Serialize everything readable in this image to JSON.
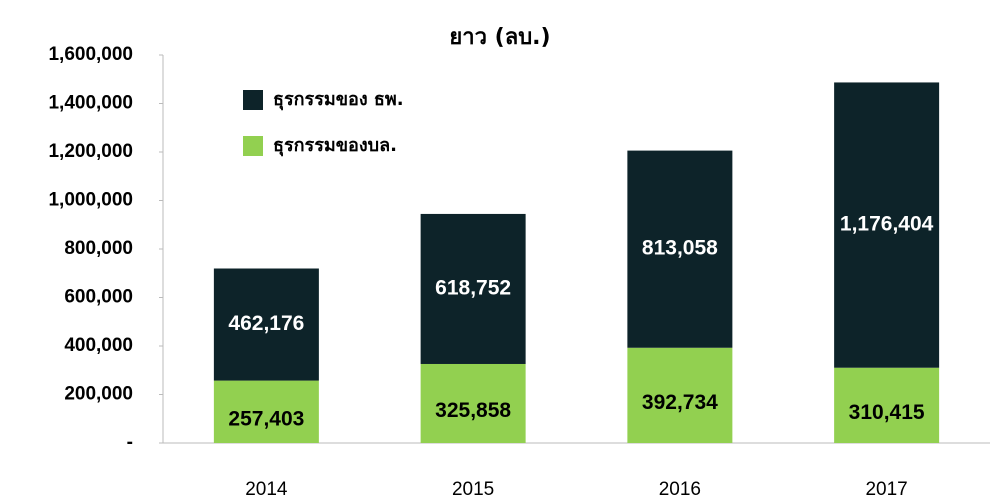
{
  "chart_data": {
    "type": "stacked_bar",
    "title": "ยาว (ลบ.)",
    "categories": [
      "2014",
      "2015",
      "2016",
      "2017"
    ],
    "series": [
      {
        "name": "ธุรกรรมของบล.",
        "color": "#92d050",
        "values": [
          257403,
          325858,
          392734,
          310415
        ],
        "value_labels": [
          "257,403",
          "325,858",
          "392,734",
          "310,415"
        ]
      },
      {
        "name": "ธุรกรรมของ ธพ.",
        "color": "#0d2329",
        "values": [
          462176,
          618752,
          813058,
          1176404
        ],
        "value_labels": [
          "462,176",
          "618,752",
          "813,058",
          "1,176,404"
        ]
      }
    ],
    "ylim": [
      0,
      1600000
    ],
    "yticks": [
      {
        "value": 0,
        "label": "-"
      },
      {
        "value": 200000,
        "label": "200,000"
      },
      {
        "value": 400000,
        "label": "400,000"
      },
      {
        "value": 600000,
        "label": "600,000"
      },
      {
        "value": 800000,
        "label": "800,000"
      },
      {
        "value": 1000000,
        "label": "1,000,000"
      },
      {
        "value": 1200000,
        "label": "1,200,000"
      },
      {
        "value": 1400000,
        "label": "1,400,000"
      },
      {
        "value": 1600000,
        "label": "1,600,000"
      }
    ],
    "legend": "upper left"
  }
}
